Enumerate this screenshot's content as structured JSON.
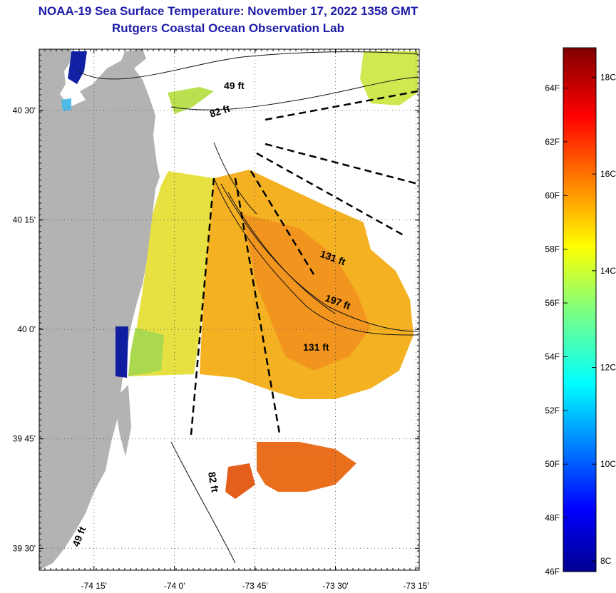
{
  "title": "NOAA-19 Sea Surface Temperature:  November 17, 2022 1358 GMT",
  "subtitle": "Rutgers Coastal Ocean Observation Lab",
  "map": {
    "lat_labels": [
      "40 30'",
      "40 15'",
      "40 0'",
      "39 45'",
      "39 30'"
    ],
    "lon_labels": [
      "-74 15'",
      "-74 0'",
      "-73 45'",
      "-73 30'",
      "-73 15'"
    ],
    "lat_values": [
      40.5,
      40.25,
      40.0,
      39.75,
      39.5
    ],
    "lon_values": [
      -74.25,
      -74.0,
      -73.75,
      -73.5,
      -73.25
    ],
    "lat_range": [
      39.45,
      40.64
    ],
    "lon_range": [
      -74.42,
      -73.24
    ],
    "isobath_labels": [
      "49 ft",
      "82 ft",
      "131 ft",
      "197 ft",
      "131 ft",
      "82 ft",
      "49 ft"
    ],
    "land_color": "#b3b3b3",
    "grid": true
  },
  "colorbar": {
    "f_labels": [
      "64F",
      "62F",
      "60F",
      "58F",
      "56F",
      "54F",
      "52F",
      "50F",
      "48F",
      "46F"
    ],
    "c_labels": [
      "18C",
      "16C",
      "14C",
      "12C",
      "10C",
      "8C"
    ],
    "range_f": [
      46,
      65.5
    ],
    "colormap": "jet"
  }
}
